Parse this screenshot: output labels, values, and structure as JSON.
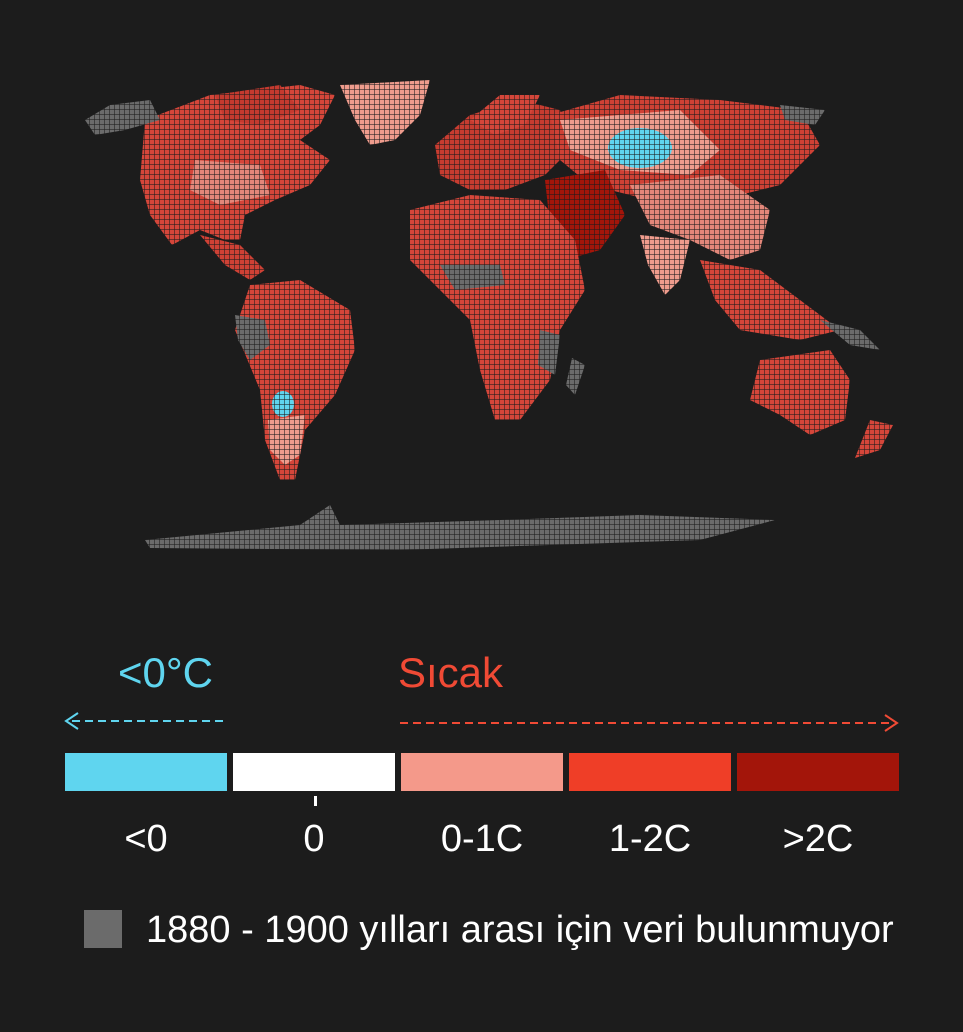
{
  "legend": {
    "cold_label": "<0°C",
    "warm_label": "Sıcak",
    "scale": [
      {
        "label": "<0",
        "color": "#5fd5ef"
      },
      {
        "label": "0",
        "color": "#ffffff"
      },
      {
        "label": "0-1C",
        "color": "#f4998a"
      },
      {
        "label": "1-2C",
        "color": "#ef3e27"
      },
      {
        "label": ">2C",
        "color": "#a3150a"
      }
    ],
    "no_data_label": "1880 - 1900 yılları arası için veri bulunmuyor",
    "no_data_color": "#6b6b6b",
    "cold_color": "#5fd5ef",
    "warm_color": "#f04a35"
  },
  "map": {
    "background_color": "#1c1c1c",
    "land_base_color": "#d8483a"
  }
}
